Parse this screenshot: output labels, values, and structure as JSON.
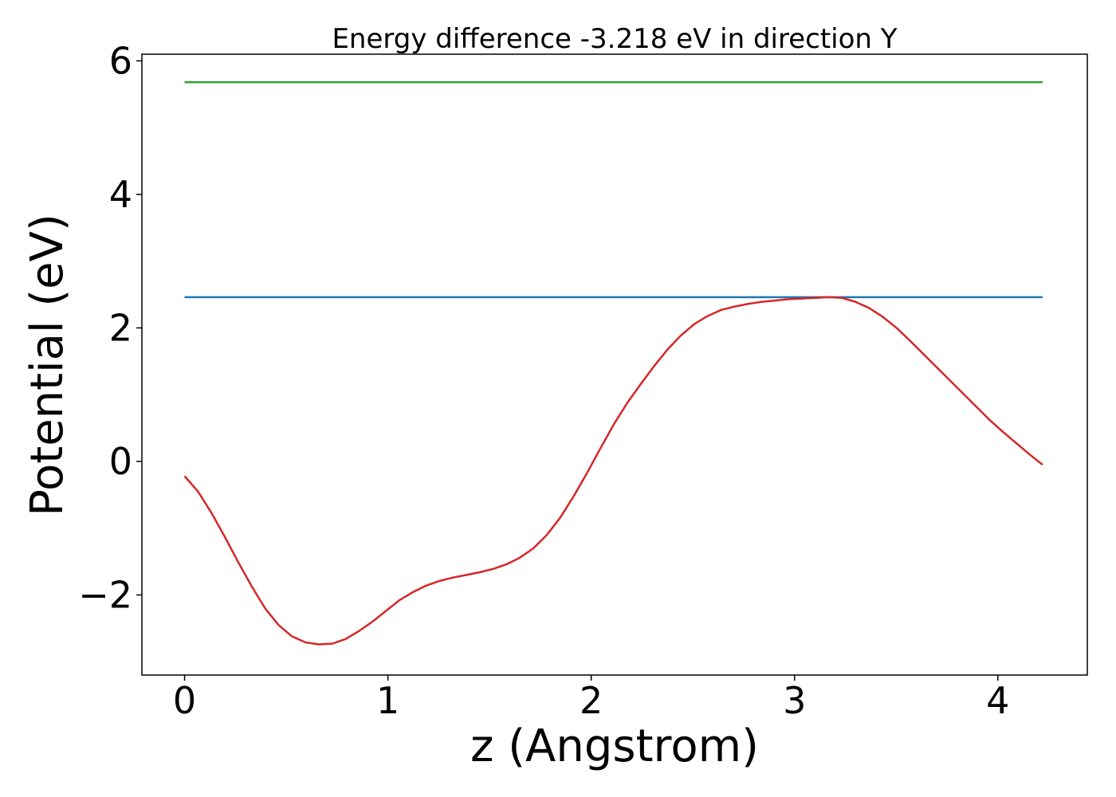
{
  "chart_data": {
    "type": "line",
    "title": "Energy difference -3.218 eV in direction Y",
    "xlabel": "z (Angstrom)",
    "ylabel": "Potential (eV)",
    "xlim": [
      -0.21,
      4.44
    ],
    "ylim": [
      -3.2,
      6.1
    ],
    "xticks": [
      {
        "value": 0,
        "label": "0"
      },
      {
        "value": 1,
        "label": "1"
      },
      {
        "value": 2,
        "label": "2"
      },
      {
        "value": 3,
        "label": "3"
      },
      {
        "value": 4,
        "label": "4"
      }
    ],
    "yticks": [
      {
        "value": -2,
        "label": "−2"
      },
      {
        "value": 0,
        "label": "0"
      },
      {
        "value": 2,
        "label": "2"
      },
      {
        "value": 4,
        "label": "4"
      },
      {
        "value": 6,
        "label": "6"
      }
    ],
    "grid": false,
    "series": [
      {
        "color": "#2ca02c",
        "x": [
          0,
          4.22
        ],
        "y": [
          5.68,
          5.68
        ]
      },
      {
        "color": "#1f77b4",
        "x": [
          0,
          4.22
        ],
        "y": [
          2.46,
          2.46
        ]
      },
      {
        "color": "#d62728",
        "x": [
          0,
          0.066,
          0.132,
          0.198,
          0.264,
          0.33,
          0.396,
          0.462,
          0.528,
          0.594,
          0.66,
          0.726,
          0.792,
          0.858,
          0.924,
          0.99,
          1.056,
          1.122,
          1.188,
          1.254,
          1.32,
          1.386,
          1.452,
          1.518,
          1.584,
          1.65,
          1.716,
          1.782,
          1.848,
          1.914,
          1.98,
          2.046,
          2.112,
          2.178,
          2.244,
          2.31,
          2.376,
          2.442,
          2.508,
          2.574,
          2.64,
          2.706,
          2.772,
          2.838,
          2.904,
          2.97,
          3.036,
          3.102,
          3.168,
          3.234,
          3.3,
          3.366,
          3.432,
          3.498,
          3.564,
          3.63,
          3.696,
          3.762,
          3.828,
          3.894,
          3.96,
          4.026,
          4.092,
          4.158,
          4.22
        ],
        "y": [
          -0.22,
          -0.45,
          -0.77,
          -1.13,
          -1.51,
          -1.87,
          -2.2,
          -2.45,
          -2.62,
          -2.71,
          -2.74,
          -2.73,
          -2.66,
          -2.54,
          -2.4,
          -2.24,
          -2.08,
          -1.96,
          -1.86,
          -1.79,
          -1.74,
          -1.7,
          -1.66,
          -1.61,
          -1.54,
          -1.44,
          -1.3,
          -1.1,
          -0.84,
          -0.52,
          -0.17,
          0.2,
          0.56,
          0.88,
          1.16,
          1.43,
          1.68,
          1.89,
          2.06,
          2.18,
          2.27,
          2.32,
          2.36,
          2.39,
          2.41,
          2.43,
          2.44,
          2.45,
          2.46,
          2.45,
          2.39,
          2.3,
          2.17,
          2.01,
          1.82,
          1.62,
          1.42,
          1.22,
          1.02,
          0.82,
          0.62,
          0.44,
          0.27,
          0.1,
          -0.05
        ]
      }
    ]
  }
}
